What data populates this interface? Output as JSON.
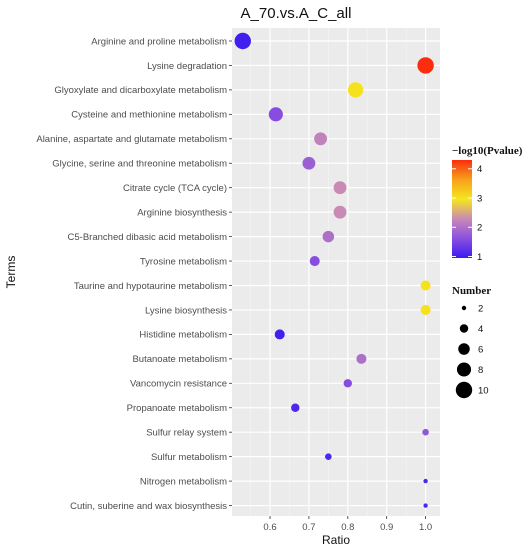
{
  "chart_data": {
    "type": "scatter",
    "title": "A_70.vs.A_C_all",
    "xlabel": "Ratio",
    "ylabel": "Terms",
    "xlim": [
      0.5,
      1.02
    ],
    "x_ticks": [
      0.6,
      0.7,
      0.8,
      0.9,
      1.0
    ],
    "x_tick_labels": [
      "0.6",
      "0.7",
      "0.8",
      "0.9",
      "1.0"
    ],
    "grid": true,
    "categories": [
      "Arginine and proline metabolism",
      "Lysine degradation",
      "Glyoxylate and dicarboxylate metabolism",
      "Cysteine and methionine metabolism",
      "Alanine, aspartate and glutamate metabolism",
      "Glycine, serine and threonine metabolism",
      "Citrate cycle (TCA cycle)",
      "Arginine biosynthesis",
      "C5-Branched dibasic acid metabolism",
      "Tyrosine metabolism",
      "Taurine and hypotaurine metabolism",
      "Lysine biosynthesis",
      "Histidine metabolism",
      "Butanoate metabolism",
      "Vancomycin resistance",
      "Propanoate metabolism",
      "Sulfur relay system",
      "Sulfur metabolism",
      "Nitrogen metabolism",
      "Cutin, suberine and wax biosynthesis"
    ],
    "points": [
      {
        "term": "Arginine and proline metabolism",
        "ratio": 0.53,
        "number": 10,
        "log10p": 1.0
      },
      {
        "term": "Lysine degradation",
        "ratio": 1.0,
        "number": 10,
        "log10p": 4.3
      },
      {
        "term": "Glyoxylate and dicarboxylate metabolism",
        "ratio": 0.82,
        "number": 9,
        "log10p": 3.0
      },
      {
        "term": "Cysteine and methionine metabolism",
        "ratio": 0.615,
        "number": 8,
        "log10p": 1.6
      },
      {
        "term": "Alanine, aspartate and glutamate metabolism",
        "ratio": 0.73,
        "number": 7,
        "log10p": 2.2
      },
      {
        "term": "Glycine, serine and threonine metabolism",
        "ratio": 0.7,
        "number": 7,
        "log10p": 1.8
      },
      {
        "term": "Citrate cycle (TCA cycle)",
        "ratio": 0.78,
        "number": 7,
        "log10p": 2.3
      },
      {
        "term": "Arginine biosynthesis",
        "ratio": 0.78,
        "number": 7,
        "log10p": 2.3
      },
      {
        "term": "C5-Branched dibasic acid metabolism",
        "ratio": 0.75,
        "number": 6,
        "log10p": 2.0
      },
      {
        "term": "Tyrosine metabolism",
        "ratio": 0.715,
        "number": 5,
        "log10p": 1.6
      },
      {
        "term": "Taurine and hypotaurine metabolism",
        "ratio": 1.0,
        "number": 5,
        "log10p": 3.0
      },
      {
        "term": "Lysine biosynthesis",
        "ratio": 1.0,
        "number": 5,
        "log10p": 3.0
      },
      {
        "term": "Histidine metabolism",
        "ratio": 0.625,
        "number": 5,
        "log10p": 1.0
      },
      {
        "term": "Butanoate metabolism",
        "ratio": 0.835,
        "number": 5,
        "log10p": 2.0
      },
      {
        "term": "Vancomycin resistance",
        "ratio": 0.8,
        "number": 4,
        "log10p": 1.6
      },
      {
        "term": "Propanoate metabolism",
        "ratio": 0.665,
        "number": 4,
        "log10p": 1.1
      },
      {
        "term": "Sulfur relay system",
        "ratio": 1.0,
        "number": 3,
        "log10p": 1.7
      },
      {
        "term": "Sulfur metabolism",
        "ratio": 0.75,
        "number": 3,
        "log10p": 1.1
      },
      {
        "term": "Nitrogen metabolism",
        "ratio": 1.0,
        "number": 2,
        "log10p": 1.1
      },
      {
        "term": "Cutin, suberine and wax biosynthesis",
        "ratio": 1.0,
        "number": 2,
        "log10p": 1.1
      }
    ],
    "color_legend": {
      "title": "−log10(Pvalue)",
      "range": [
        0.95,
        4.3
      ],
      "ticks": [
        1,
        2,
        3,
        4
      ],
      "tick_labels": [
        "1",
        "2",
        "3",
        "4"
      ],
      "colors": [
        "#3b1bf0",
        "#8a4fe0",
        "#c88ab5",
        "#f6e61c",
        "#f7a11c",
        "#fb2d0e"
      ]
    },
    "size_legend": {
      "title": "Number",
      "values": [
        2,
        4,
        6,
        8,
        10
      ],
      "labels": [
        "2",
        "4",
        "6",
        "8",
        "10"
      ]
    }
  }
}
